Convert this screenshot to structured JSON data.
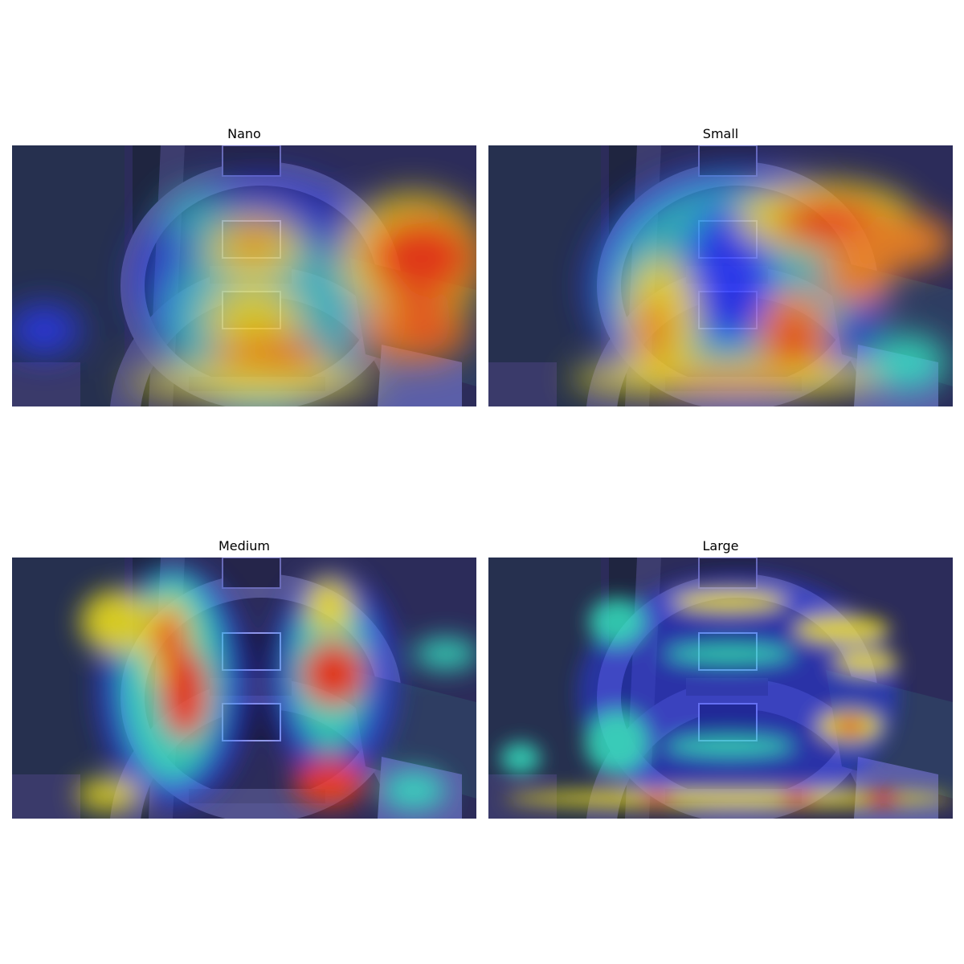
{
  "figure": {
    "panels": [
      {
        "title": "Nano"
      },
      {
        "title": "Small"
      },
      {
        "title": "Medium"
      },
      {
        "title": "Large"
      }
    ]
  },
  "colors": {
    "background_dark_navy": "#2a2a55",
    "heat_low": "#2b3aff",
    "heat_mid": "#35e0c0",
    "heat_high": "#ff3a10",
    "heat_yellow": "#f5e51a"
  }
}
